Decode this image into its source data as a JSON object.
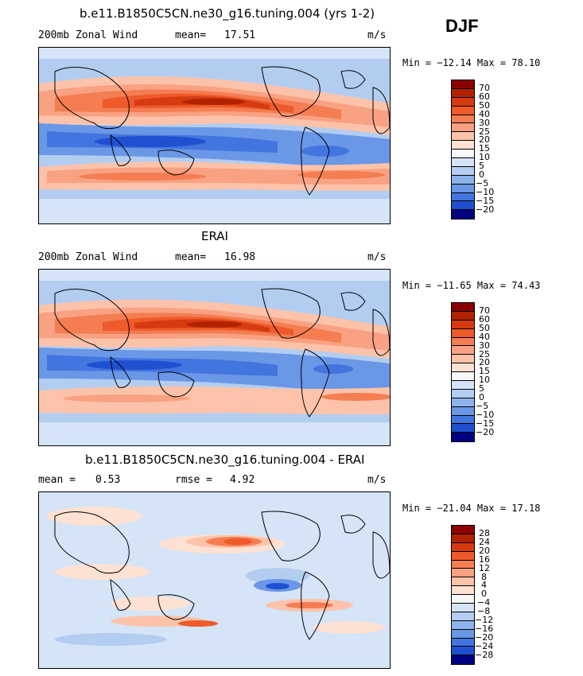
{
  "season": "DJF",
  "panels": [
    {
      "title": "b.e11.B1850C5CN.ne30_g16.tuning.004 (yrs 1-2)",
      "left_label": "200mb Zonal Wind",
      "stat_label": "mean=",
      "stat_value": "17.51",
      "units": "m/s",
      "minmax": "Min = −12.14 Max = 78.10",
      "colorbar_colors": [
        "#8b0000",
        "#b22200",
        "#d63a10",
        "#ee5a2a",
        "#f47d52",
        "#f9a183",
        "#fcc3aa",
        "#fde1d3",
        "#f7f7f7",
        "#d5e4f6",
        "#b3cdf1",
        "#8eb3ec",
        "#6a97e6",
        "#4375df",
        "#1f50d0",
        "#0a2fa8",
        "#000080"
      ],
      "colorbar_labels": [
        "70",
        "60",
        "50",
        "40",
        "30",
        "25",
        "20",
        "15",
        "10",
        "5",
        "0",
        "−5",
        "−10",
        "−15",
        "−20"
      ]
    },
    {
      "title": "ERAI",
      "left_label": "200mb Zonal Wind",
      "stat_label": "mean=",
      "stat_value": "16.98",
      "units": "m/s",
      "minmax": "Min = −11.65 Max = 74.43",
      "colorbar_colors": [
        "#8b0000",
        "#b22200",
        "#d63a10",
        "#ee5a2a",
        "#f47d52",
        "#f9a183",
        "#fcc3aa",
        "#fde1d3",
        "#f7f7f7",
        "#d5e4f6",
        "#b3cdf1",
        "#8eb3ec",
        "#6a97e6",
        "#4375df",
        "#1f50d0",
        "#0a2fa8",
        "#000080"
      ],
      "colorbar_labels": [
        "70",
        "60",
        "50",
        "40",
        "30",
        "25",
        "20",
        "15",
        "10",
        "5",
        "0",
        "−5",
        "−10",
        "−15",
        "−20"
      ]
    },
    {
      "title": "b.e11.B1850C5CN.ne30_g16.tuning.004 - ERAI",
      "left_label": "mean =",
      "left_value": "0.53",
      "stat_label": "rmse =",
      "stat_value": "4.92",
      "units": "m/s",
      "minmax": "Min = −21.04 Max = 17.18",
      "colorbar_colors": [
        "#8b0000",
        "#b22200",
        "#d63a10",
        "#ee5a2a",
        "#f47d52",
        "#f9a183",
        "#fcc3aa",
        "#fde1d3",
        "#f7f7f7",
        "#d5e4f6",
        "#b3cdf1",
        "#8eb3ec",
        "#6a97e6",
        "#4375df",
        "#1f50d0",
        "#0a2fa8",
        "#000080"
      ],
      "colorbar_labels": [
        "28",
        "24",
        "20",
        "16",
        "12",
        "8",
        "4",
        "0",
        "−4",
        "−8",
        "−12",
        "−16",
        "−20",
        "−24",
        "−28"
      ]
    }
  ]
}
